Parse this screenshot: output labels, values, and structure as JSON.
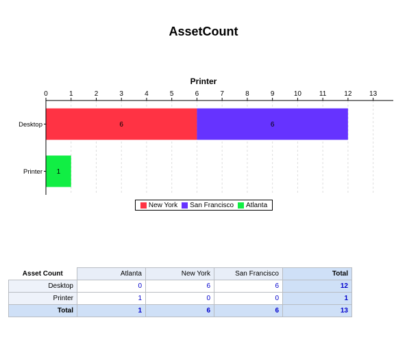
{
  "report": {
    "title": "AssetCount"
  },
  "chart_data": {
    "type": "bar",
    "orientation": "horizontal",
    "stacked": true,
    "title": "Printer",
    "categories": [
      "Desktop",
      "Printer"
    ],
    "series": [
      {
        "name": "New York",
        "color": "#ff3344",
        "values": [
          6,
          0
        ]
      },
      {
        "name": "San Francisco",
        "color": "#6633ff",
        "values": [
          6,
          0
        ]
      },
      {
        "name": "Atlanta",
        "color": "#11ee44",
        "values": [
          0,
          1
        ]
      }
    ],
    "x_ticks": [
      0,
      1,
      2,
      3,
      4,
      5,
      6,
      7,
      8,
      9,
      10,
      11,
      12,
      13
    ],
    "xlim": [
      0,
      13.8
    ],
    "xaxis_position": "top",
    "grid": "vertical-dashed",
    "legend_position": "bottom-center"
  },
  "table": {
    "corner": "Asset Count",
    "columns": [
      "Atlanta",
      "New York",
      "San Francisco",
      "Total"
    ],
    "rows": [
      {
        "label": "Desktop",
        "values": [
          "0",
          "6",
          "6",
          "12"
        ]
      },
      {
        "label": "Printer",
        "values": [
          "1",
          "0",
          "0",
          "1"
        ]
      }
    ],
    "total_row": {
      "label": "Total",
      "values": [
        "1",
        "6",
        "6",
        "13"
      ]
    }
  }
}
